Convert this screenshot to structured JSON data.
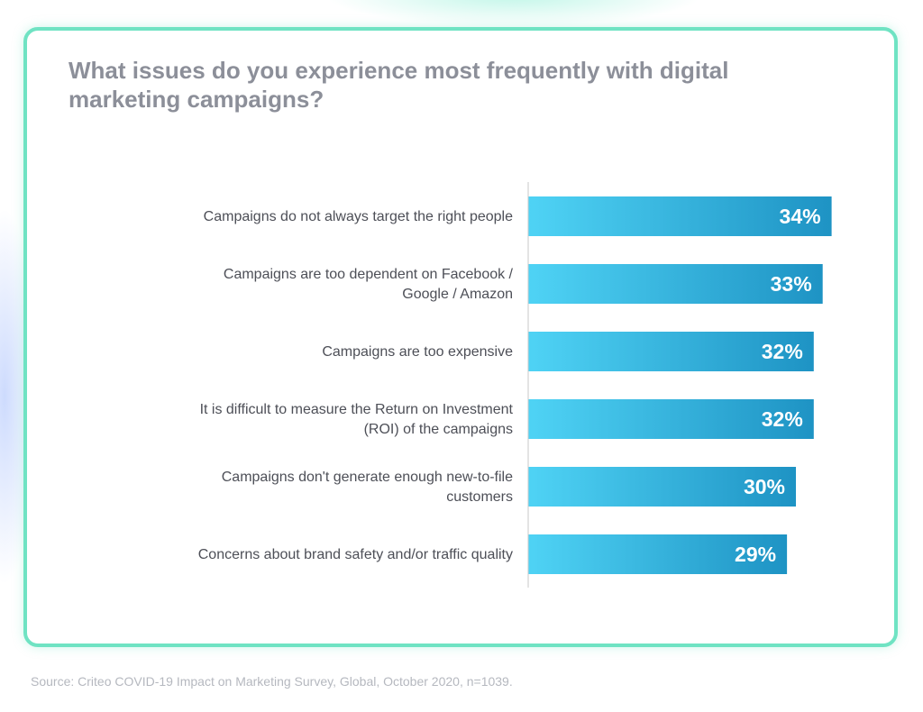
{
  "chart_data": {
    "type": "bar",
    "orientation": "horizontal",
    "title": "What issues do you experience most frequently with digital marketing campaigns?",
    "categories": [
      [
        "Campaigns do not always target the right people"
      ],
      [
        "Campaigns are too dependent on Facebook /",
        "Google / Amazon"
      ],
      [
        "Campaigns are too expensive"
      ],
      [
        "It is difficult to measure the Return on Investment",
        "(ROI) of the campaigns"
      ],
      [
        "Campaigns don't generate enough new-to-file",
        "customers"
      ],
      [
        "Concerns about brand safety and/or traffic quality"
      ]
    ],
    "values": [
      34,
      33,
      32,
      32,
      30,
      29
    ],
    "value_labels": [
      "34%",
      "33%",
      "32%",
      "32%",
      "30%",
      "29%"
    ],
    "xlim": [
      0,
      100
    ],
    "grid": false,
    "legend": "none",
    "colors": {
      "bar_start": "#4fd3f5",
      "bar_end": "#1e93c4",
      "value_text": "#ffffff",
      "label_text": "#4d4f57",
      "card_border": "#6fe3c3",
      "title_text": "#8c8f99",
      "axis_line": "#c8c8c8"
    }
  },
  "source": "Source: Criteo COVID-19 Impact on Marketing Survey, Global, October 2020, n=1039."
}
